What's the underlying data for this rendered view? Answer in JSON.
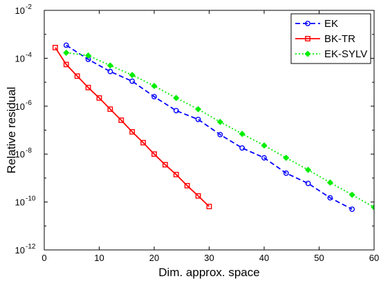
{
  "chart_data": {
    "type": "line",
    "title": "",
    "xlabel": "Dim. approx. space",
    "ylabel": "Relative residual",
    "xlim": [
      0,
      60
    ],
    "ylim": [
      1e-12,
      0.01
    ],
    "yscale": "log",
    "xticks": [
      0,
      10,
      20,
      30,
      40,
      50,
      60
    ],
    "xtick_labels": [
      "0",
      "10",
      "20",
      "30",
      "40",
      "50",
      "60"
    ],
    "yticks": [
      1e-12,
      1e-10,
      1e-08,
      1e-06,
      0.0001,
      0.01
    ],
    "ytick_labels": [
      {
        "base": "10",
        "exp": "-12"
      },
      {
        "base": "10",
        "exp": "-10"
      },
      {
        "base": "10",
        "exp": "-8"
      },
      {
        "base": "10",
        "exp": "-6"
      },
      {
        "base": "10",
        "exp": "-4"
      },
      {
        "base": "10",
        "exp": "-2"
      }
    ],
    "grid": false,
    "legend": "top-right",
    "series": [
      {
        "name": "EK",
        "color": "#0000ff",
        "line_style": "dashed",
        "marker": "circle",
        "x": [
          4,
          8,
          12,
          16,
          20,
          24,
          28,
          32,
          36,
          40,
          44,
          48,
          52,
          56
        ],
        "y": [
          0.00035,
          9e-05,
          2.8e-05,
          1.1e-05,
          2.5e-06,
          6.5e-07,
          2.8e-07,
          6.5e-08,
          1.8e-08,
          7e-09,
          1.6e-09,
          6e-10,
          1.5e-10,
          5e-11
        ]
      },
      {
        "name": "BK-TR",
        "color": "#ff0000",
        "line_style": "solid",
        "marker": "square",
        "x": [
          2,
          4,
          6,
          8,
          10,
          12,
          14,
          16,
          18,
          20,
          22,
          24,
          26,
          28,
          30
        ],
        "y": [
          0.00028,
          5.5e-05,
          1.8e-05,
          6e-06,
          2.2e-06,
          7.5e-07,
          2.6e-07,
          8.5e-08,
          3e-08,
          1e-08,
          3.6e-09,
          1.4e-09,
          4.8e-10,
          1.8e-10,
          6.5e-11
        ]
      },
      {
        "name": "EK-SYLV",
        "color": "#00ee00",
        "line_style": "dotted",
        "marker": "diamond",
        "x": [
          4,
          8,
          12,
          16,
          20,
          24,
          28,
          32,
          36,
          40,
          44,
          48,
          52,
          56,
          60
        ],
        "y": [
          0.00017,
          0.00013,
          5e-05,
          2e-05,
          7e-06,
          2.2e-06,
          7.5e-07,
          2.2e-07,
          7e-08,
          2.3e-08,
          7e-09,
          2.2e-09,
          6.5e-10,
          2e-10,
          6e-11
        ]
      }
    ]
  }
}
